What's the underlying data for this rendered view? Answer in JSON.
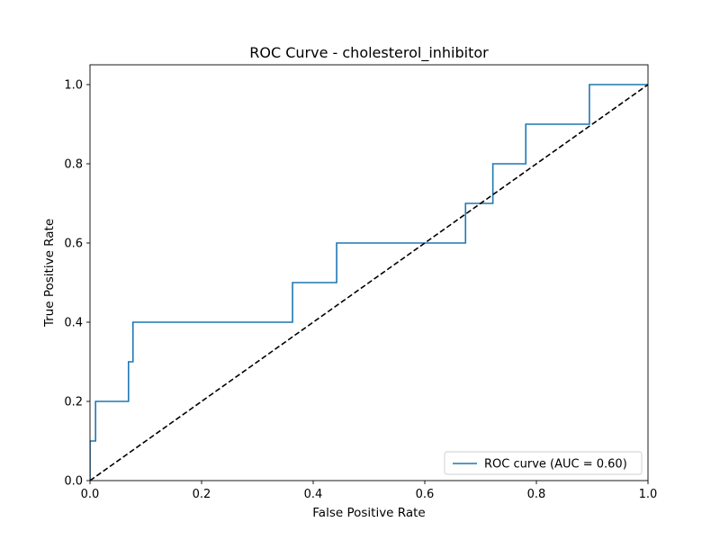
{
  "chart_data": {
    "type": "line",
    "title": "ROC Curve - cholesterol_inhibitor",
    "xlabel": "False Positive Rate",
    "ylabel": "True Positive Rate",
    "xlim": [
      0.0,
      1.0
    ],
    "ylim": [
      0.0,
      1.05
    ],
    "xticks": [
      "0.0",
      "0.2",
      "0.4",
      "0.6",
      "0.8",
      "1.0"
    ],
    "yticks": [
      "0.0",
      "0.2",
      "0.4",
      "0.6",
      "0.8",
      "1.0"
    ],
    "grid": false,
    "legend": {
      "location": "lower-right",
      "entries": [
        "ROC curve (AUC = 0.60)"
      ]
    },
    "series": [
      {
        "name": "ROC curve (AUC = 0.60)",
        "color": "#1f77b4",
        "style": "steps",
        "x": [
          0.0,
          0.0,
          0.0,
          0.01,
          0.01,
          0.069,
          0.069,
          0.077,
          0.077,
          0.363,
          0.363,
          0.442,
          0.442,
          0.673,
          0.673,
          0.722,
          0.722,
          0.781,
          0.781,
          0.895,
          0.895,
          1.0
        ],
        "y": [
          0.0,
          0.0,
          0.1,
          0.1,
          0.2,
          0.2,
          0.3,
          0.3,
          0.4,
          0.4,
          0.5,
          0.5,
          0.6,
          0.6,
          0.7,
          0.7,
          0.8,
          0.8,
          0.9,
          0.9,
          1.0,
          1.0
        ]
      },
      {
        "role": "chance-diagonal",
        "color": "#000000",
        "style": "dashed",
        "x": [
          0.0,
          1.0
        ],
        "y": [
          0.0,
          1.0
        ]
      }
    ]
  }
}
